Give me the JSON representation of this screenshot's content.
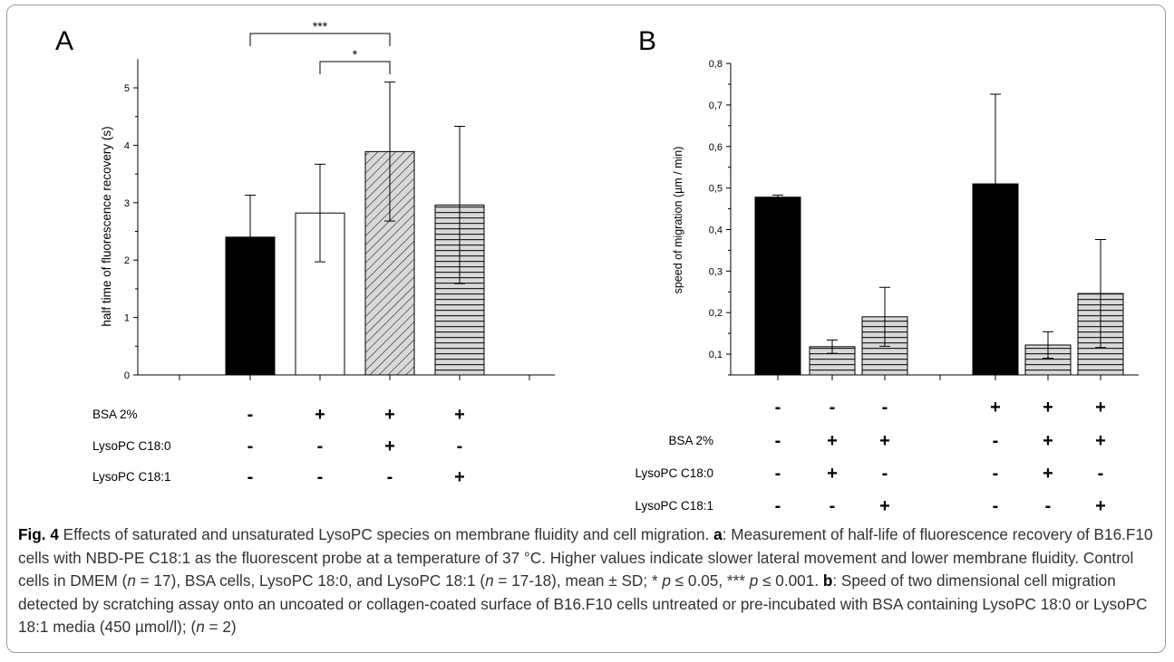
{
  "figure": {
    "caption_label": "Fig. 4",
    "caption_title": "Effects of saturated and unsaturated LysoPC species on membrane fluidity and cell migration.",
    "part_a_label": "a",
    "part_a_text": ": Measurement of half-life of fluorescence recovery of B16.F10 cells with NBD-PE C18:1 as the fluorescent probe at a temperature of 37 °C. Higher values indicate slower lateral movement and lower membrane fluidity. Control cells in DMEM (",
    "n_symbol": "n",
    "part_a_n1": " = 17), BSA cells, LysoPC 18:0, and LysoPC 18:1 (",
    "part_a_n2": " = 17-18), mean ± SD; * ",
    "p_symbol": "p",
    "part_a_p1": " ≤ 0.05, *** ",
    "part_a_p2": " ≤ 0.001.",
    "part_b_label": "b",
    "part_b_text": ": Speed of two dimensional cell migration detected by scratching assay onto an uncoated or collagen-coated surface of B16.F10 cells untreated or pre-incubated with BSA containing LysoPC 18:0 or LysoPC 18:1 media (450 µmol/l); (",
    "part_b_n": " = 2)"
  },
  "chart_data": [
    {
      "type": "bar",
      "panel_label": "A",
      "ylabel": "half time of fluorescence recovery (s)",
      "ylim": [
        0,
        5.5
      ],
      "yticks": [
        "0",
        "1",
        "2",
        "3",
        "4",
        "5"
      ],
      "values": [
        2.4,
        2.82,
        3.89,
        2.96
      ],
      "errors": [
        0.73,
        0.85,
        1.21,
        1.37
      ],
      "fills": [
        "solid-black",
        "white",
        "diagonal-hatch",
        "horizontal-hatch"
      ],
      "significance": [
        {
          "from": 0,
          "to": 2,
          "label": "***"
        },
        {
          "from": 1,
          "to": 2,
          "label": "*"
        }
      ],
      "condition_rows": [
        {
          "label": "BSA 2%",
          "marks": [
            "-",
            "+",
            "+",
            "+"
          ]
        },
        {
          "label": "LysoPC C18:0",
          "marks": [
            "-",
            "-",
            "+",
            "-"
          ]
        },
        {
          "label": "LysoPC C18:1",
          "marks": [
            "-",
            "-",
            "-",
            "+"
          ]
        }
      ]
    },
    {
      "type": "bar",
      "panel_label": "B",
      "ylabel": "speed of migration (µm / min)",
      "ylim": [
        0.05,
        0.8
      ],
      "yticks": [
        "0,1",
        "0,2",
        "0,3",
        "0,4",
        "0,5",
        "0,6",
        "0,7",
        "0,8"
      ],
      "values": [
        0.478,
        0.118,
        0.19,
        0.51,
        0.122,
        0.246
      ],
      "errors": [
        0.005,
        0.016,
        0.071,
        0.216,
        0.032,
        0.13
      ],
      "fills": [
        "solid-black",
        "horizontal-hatch",
        "horizontal-hatch",
        "solid-black",
        "horizontal-hatch",
        "horizontal-hatch"
      ],
      "condition_rows": [
        {
          "label": "",
          "marks": [
            "-",
            "-",
            "-",
            "+",
            "+",
            "+"
          ]
        },
        {
          "label": "BSA 2%",
          "marks": [
            "-",
            "+",
            "+",
            "-",
            "+",
            "+"
          ]
        },
        {
          "label": "LysoPC C18:0",
          "marks": [
            "-",
            "+",
            "-",
            "-",
            "+",
            "-"
          ]
        },
        {
          "label": "LysoPC C18:1",
          "marks": [
            "-",
            "-",
            "+",
            "-",
            "-",
            "+"
          ]
        }
      ]
    }
  ]
}
